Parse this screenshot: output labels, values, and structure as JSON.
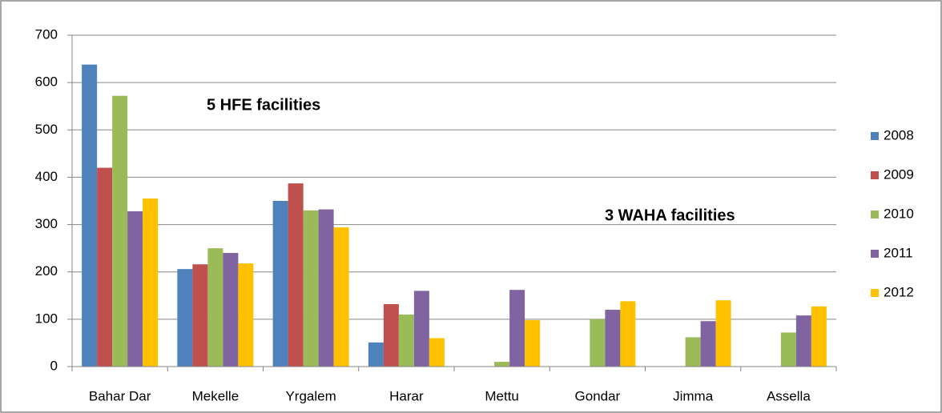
{
  "chart_data": {
    "type": "bar",
    "categories": [
      "Bahar Dar",
      "Mekelle",
      "Yrgalem",
      "Harar",
      "Mettu",
      "Gondar",
      "Jimma",
      "Assella"
    ],
    "series": [
      {
        "name": "2008",
        "color": "#4f81bd",
        "values": [
          638,
          206,
          350,
          51,
          null,
          null,
          null,
          null
        ]
      },
      {
        "name": "2009",
        "color": "#c0504d",
        "values": [
          420,
          216,
          387,
          132,
          null,
          null,
          null,
          null
        ]
      },
      {
        "name": "2010",
        "color": "#9bbb59",
        "values": [
          572,
          250,
          330,
          110,
          10,
          100,
          62,
          72
        ]
      },
      {
        "name": "2011",
        "color": "#8064a2",
        "values": [
          328,
          240,
          332,
          160,
          162,
          120,
          96,
          108
        ]
      },
      {
        "name": "2012",
        "color": "#ffc000",
        "values": [
          355,
          218,
          294,
          60,
          98,
          138,
          140,
          127
        ]
      }
    ],
    "annotations": [
      "5 HFE facilities",
      "3 WAHA facilities"
    ],
    "ylim": [
      0,
      700
    ],
    "yticks": [
      0,
      100,
      200,
      300,
      400,
      500,
      600,
      700
    ],
    "grid": true,
    "legend": "right"
  }
}
